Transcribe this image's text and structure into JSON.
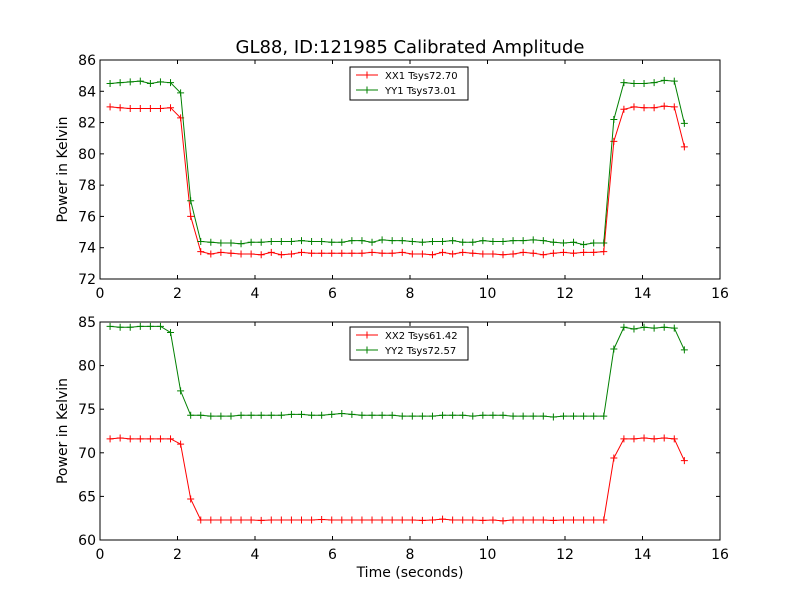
{
  "figure": {
    "title": "GL88, ID:121985 Calibrated Amplitude"
  },
  "chart_data": [
    {
      "type": "line",
      "ylabel": "Power in Kelvin",
      "xlabel": "",
      "xlim": [
        0,
        16
      ],
      "ylim": [
        72,
        86
      ],
      "xticks": [
        0,
        2,
        4,
        6,
        8,
        10,
        12,
        14,
        16
      ],
      "yticks": [
        72,
        74,
        76,
        78,
        80,
        82,
        84,
        86
      ],
      "legend_position": "top-center",
      "grid": false,
      "x": [
        0.26,
        0.52,
        0.78,
        1.04,
        1.3,
        1.56,
        1.82,
        2.08,
        2.34,
        2.6,
        2.86,
        3.12,
        3.38,
        3.64,
        3.9,
        4.16,
        4.42,
        4.68,
        4.94,
        5.2,
        5.46,
        5.72,
        5.98,
        6.24,
        6.5,
        6.76,
        7.02,
        7.28,
        7.54,
        7.8,
        8.06,
        8.32,
        8.58,
        8.84,
        9.1,
        9.36,
        9.62,
        9.88,
        10.14,
        10.4,
        10.66,
        10.92,
        11.18,
        11.44,
        11.7,
        11.96,
        12.22,
        12.48,
        12.74,
        13.0,
        13.26,
        13.52,
        13.78,
        14.04,
        14.3,
        14.56,
        14.82,
        15.08
      ],
      "series": [
        {
          "name": "XX1 Tsys72.70",
          "color": "#ff0000",
          "values": [
            83.0,
            82.95,
            82.9,
            82.9,
            82.9,
            82.9,
            82.95,
            82.3,
            76.0,
            73.75,
            73.6,
            73.7,
            73.65,
            73.6,
            73.6,
            73.55,
            73.7,
            73.55,
            73.6,
            73.7,
            73.65,
            73.65,
            73.65,
            73.65,
            73.65,
            73.65,
            73.7,
            73.65,
            73.65,
            73.7,
            73.6,
            73.6,
            73.55,
            73.7,
            73.6,
            73.7,
            73.65,
            73.6,
            73.6,
            73.55,
            73.6,
            73.7,
            73.65,
            73.55,
            73.65,
            73.7,
            73.65,
            73.7,
            73.7,
            73.75,
            80.8,
            82.85,
            83.0,
            82.95,
            82.95,
            83.05,
            83.0,
            80.45
          ]
        },
        {
          "name": "YY1 Tsys73.01",
          "color": "#008000",
          "values": [
            84.5,
            84.55,
            84.6,
            84.65,
            84.5,
            84.6,
            84.55,
            83.9,
            77.0,
            74.4,
            74.35,
            74.3,
            74.3,
            74.25,
            74.35,
            74.35,
            74.4,
            74.4,
            74.4,
            74.45,
            74.4,
            74.4,
            74.35,
            74.35,
            74.45,
            74.45,
            74.35,
            74.5,
            74.45,
            74.45,
            74.4,
            74.35,
            74.4,
            74.4,
            74.45,
            74.35,
            74.35,
            74.45,
            74.4,
            74.4,
            74.45,
            74.45,
            74.5,
            74.45,
            74.35,
            74.3,
            74.35,
            74.2,
            74.3,
            74.3,
            82.2,
            84.55,
            84.5,
            84.5,
            84.55,
            84.7,
            84.65,
            81.95
          ]
        }
      ]
    },
    {
      "type": "line",
      "ylabel": "Power in Kelvin",
      "xlabel": "Time (seconds)",
      "xlim": [
        0,
        16
      ],
      "ylim": [
        60,
        85
      ],
      "xticks": [
        0,
        2,
        4,
        6,
        8,
        10,
        12,
        14,
        16
      ],
      "yticks": [
        60,
        65,
        70,
        75,
        80,
        85
      ],
      "legend_position": "top-center",
      "grid": false,
      "x": [
        0.26,
        0.52,
        0.78,
        1.04,
        1.3,
        1.56,
        1.82,
        2.08,
        2.34,
        2.6,
        2.86,
        3.12,
        3.38,
        3.64,
        3.9,
        4.16,
        4.42,
        4.68,
        4.94,
        5.2,
        5.46,
        5.72,
        5.98,
        6.24,
        6.5,
        6.76,
        7.02,
        7.28,
        7.54,
        7.8,
        8.06,
        8.32,
        8.58,
        8.84,
        9.1,
        9.36,
        9.62,
        9.88,
        10.14,
        10.4,
        10.66,
        10.92,
        11.18,
        11.44,
        11.7,
        11.96,
        12.22,
        12.48,
        12.74,
        13.0,
        13.26,
        13.52,
        13.78,
        14.04,
        14.3,
        14.56,
        14.82,
        15.08
      ],
      "series": [
        {
          "name": "XX2 Tsys61.42",
          "color": "#ff0000",
          "values": [
            71.6,
            71.7,
            71.6,
            71.6,
            71.6,
            71.6,
            71.6,
            71.0,
            64.7,
            62.3,
            62.3,
            62.3,
            62.3,
            62.3,
            62.3,
            62.25,
            62.3,
            62.3,
            62.3,
            62.3,
            62.3,
            62.35,
            62.3,
            62.3,
            62.3,
            62.3,
            62.3,
            62.3,
            62.3,
            62.3,
            62.3,
            62.25,
            62.3,
            62.4,
            62.3,
            62.3,
            62.3,
            62.25,
            62.3,
            62.2,
            62.3,
            62.3,
            62.3,
            62.3,
            62.25,
            62.3,
            62.3,
            62.3,
            62.3,
            62.3,
            69.4,
            71.6,
            71.6,
            71.7,
            71.6,
            71.7,
            71.6,
            69.1
          ]
        },
        {
          "name": "YY2 Tsys72.57",
          "color": "#008000",
          "values": [
            84.5,
            84.4,
            84.4,
            84.5,
            84.5,
            84.5,
            83.8,
            77.1,
            74.3,
            74.3,
            74.2,
            74.2,
            74.2,
            74.3,
            74.3,
            74.3,
            74.3,
            74.3,
            74.4,
            74.4,
            74.3,
            74.3,
            74.4,
            74.5,
            74.4,
            74.3,
            74.3,
            74.3,
            74.3,
            74.2,
            74.2,
            74.2,
            74.2,
            74.3,
            74.3,
            74.3,
            74.2,
            74.3,
            74.3,
            74.3,
            74.2,
            74.2,
            74.2,
            74.2,
            74.1,
            74.2,
            74.2,
            74.2,
            74.2,
            74.2,
            81.9,
            84.4,
            84.2,
            84.4,
            84.3,
            84.4,
            84.3,
            81.8
          ]
        }
      ]
    }
  ]
}
